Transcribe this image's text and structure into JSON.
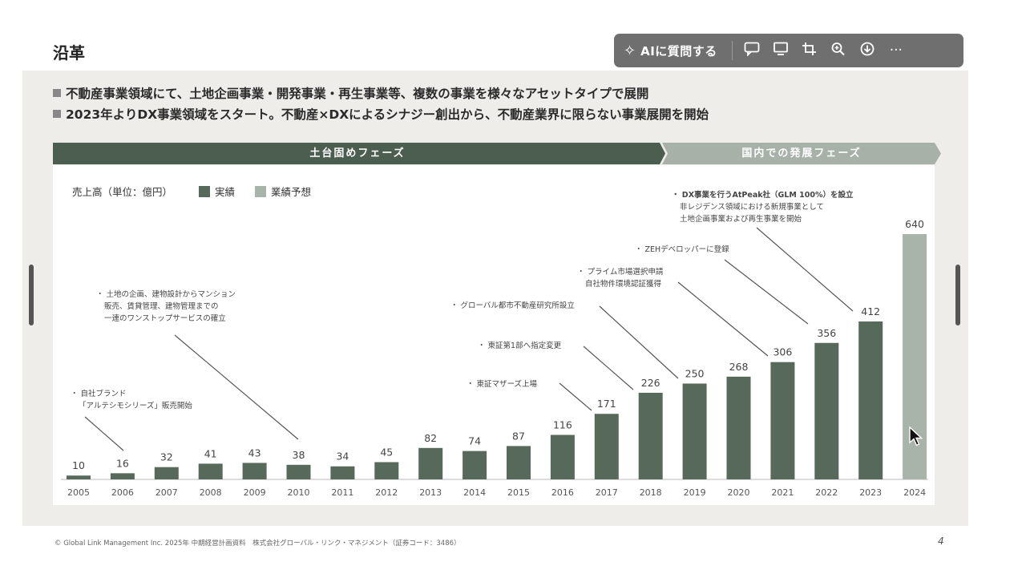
{
  "slide": {
    "title": "沿革",
    "bullets": [
      "不動産事業領域にて、土地企画事業・開発事業・再生事業等、複数の事業を様々なアセットタイプで展開",
      "2023年よりDX事業領域をスタート。不動産×DXによるシナジー創出から、不動産業界に限らない事業展開を開始"
    ],
    "phases": [
      "土台固めフェーズ",
      "国内での発展フェーズ"
    ],
    "footer": "© Global Link Management Inc. 2025年 中期経営計画資料　株式会社グローバル・リンク・マネジメント（証券コード：3486）",
    "page_number": "4"
  },
  "toolbar": {
    "ai_label": "AIに質問する",
    "icons": [
      "ai-sparkle-icon",
      "comment-icon",
      "screen-icon",
      "crop-icon",
      "zoom-icon",
      "download-icon",
      "more-icon"
    ],
    "more_glyph": "···"
  },
  "chart_data": {
    "type": "bar",
    "ylabel": "売上高（単位：億円）",
    "legend": [
      {
        "name": "実績",
        "color": "#56695a"
      },
      {
        "name": "業績予想",
        "color": "#a8b3a9"
      }
    ],
    "categories": [
      "2005",
      "2006",
      "2007",
      "2008",
      "2009",
      "2010",
      "2011",
      "2012",
      "2013",
      "2014",
      "2015",
      "2016",
      "2017",
      "2018",
      "2019",
      "2020",
      "2021",
      "2022",
      "2023",
      "2024"
    ],
    "values": [
      10,
      16,
      32,
      41,
      43,
      38,
      34,
      45,
      82,
      74,
      87,
      116,
      171,
      226,
      250,
      268,
      306,
      356,
      412,
      640
    ],
    "forecast_flags": [
      false,
      false,
      false,
      false,
      false,
      false,
      false,
      false,
      false,
      false,
      false,
      false,
      false,
      false,
      false,
      false,
      false,
      false,
      false,
      true
    ],
    "ylim": [
      0,
      640
    ],
    "grid": false,
    "legend_position": "top-left",
    "annotations": [
      {
        "year": "2006",
        "lines": [
          "自社ブランド",
          "「アルテシモシリーズ」販売開始"
        ]
      },
      {
        "year": "2010",
        "lines": [
          "土地の企画、建物設計からマンション",
          "販売、賃貸管理、建物管理までの",
          "一連のワンストップサービスの確立"
        ]
      },
      {
        "year": "2017",
        "lines": [
          "東証マザーズ上場"
        ]
      },
      {
        "year": "2018",
        "lines": [
          "東証第1部へ指定変更"
        ]
      },
      {
        "year": "2019",
        "lines": [
          "グローバル都市不動産研究所設立"
        ]
      },
      {
        "year": "2021",
        "lines": [
          "プライム市場選択申請",
          "自社物件環境認証獲得"
        ]
      },
      {
        "year": "2022",
        "lines": [
          "ZEHデベロッパーに登録"
        ]
      },
      {
        "year": "2023",
        "lines": [
          "DX事業を行うAtPeak社（GLM 100%）を設立",
          "非レジデンス領域における新規事業として",
          "土地企画事業および再生事業を開始"
        ]
      }
    ]
  },
  "colors": {
    "phase_dark": "#4c5e50",
    "phase_light": "#a7b1a8",
    "axis": "#bbbbbb",
    "leader_line": "#555555"
  }
}
